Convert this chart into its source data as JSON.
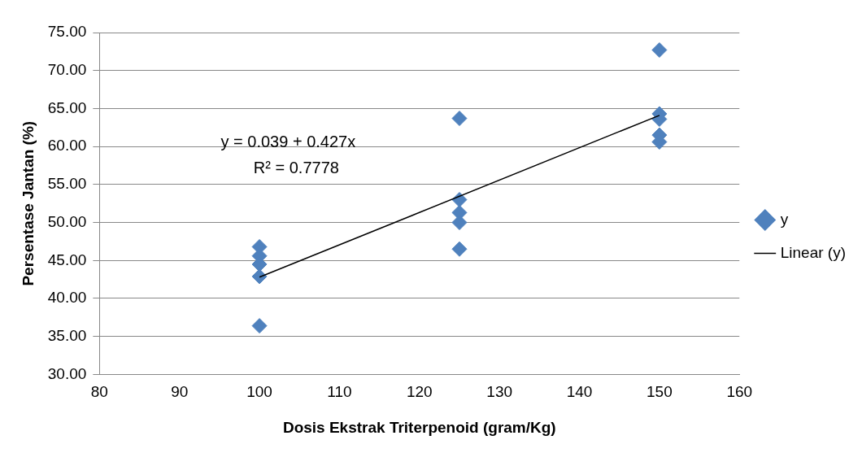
{
  "chart_data": {
    "type": "scatter",
    "xlabel": "Dosis Ekstrak Triterpenoid (gram/Kg)",
    "ylabel": "Persentase Jantan (%)",
    "xlim": [
      80,
      160
    ],
    "xticks": [
      80,
      90,
      100,
      110,
      120,
      130,
      140,
      150,
      160
    ],
    "ylim": [
      30,
      75
    ],
    "yticks": [
      {
        "value": 30,
        "label": "30.00"
      },
      {
        "value": 35,
        "label": "35.00"
      },
      {
        "value": 40,
        "label": "40.00"
      },
      {
        "value": 45,
        "label": "45.00"
      },
      {
        "value": 50,
        "label": "50.00"
      },
      {
        "value": 55,
        "label": "55.00"
      },
      {
        "value": 60,
        "label": "60.00"
      },
      {
        "value": 65,
        "label": "65.00"
      },
      {
        "value": 70,
        "label": "70.00"
      },
      {
        "value": 75,
        "label": "75.00"
      }
    ],
    "grid": "y",
    "legend": "right",
    "marker": "diamond",
    "series": [
      {
        "name": "y",
        "color": "#4f81bd",
        "x": [
          100,
          100,
          100,
          100,
          100,
          125,
          125,
          125,
          125,
          125,
          150,
          150,
          150,
          150,
          150
        ],
        "values": [
          46.8,
          45.6,
          44.5,
          42.9,
          36.4,
          63.7,
          53.0,
          51.3,
          50.0,
          46.5,
          72.7,
          64.3,
          63.6,
          61.5,
          60.6
        ]
      },
      {
        "name": "Linear (y)",
        "type": "line",
        "marker": "none",
        "color": "#000000",
        "x": [
          100,
          150
        ],
        "values": [
          42.8,
          64.1
        ]
      }
    ],
    "annotations": [
      "y = 0.039 + 0.427x",
      "R² = 0.7778"
    ]
  }
}
